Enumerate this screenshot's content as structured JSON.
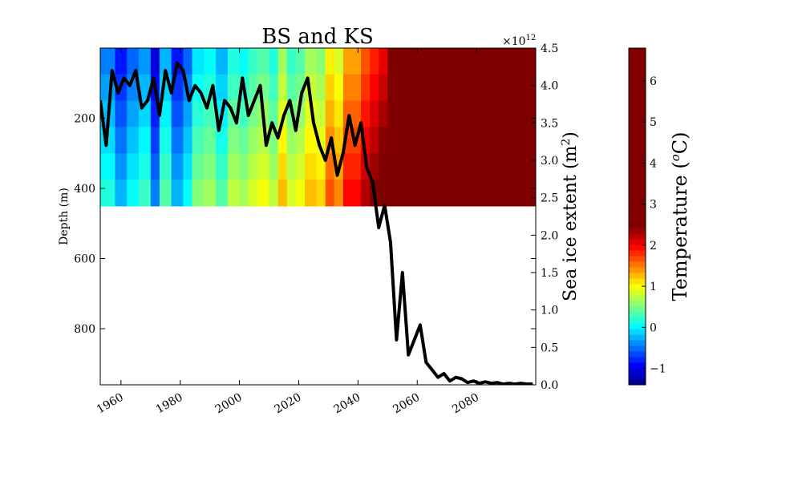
{
  "chart_data": {
    "type": "heatmap",
    "title": "BS and KS",
    "x_tick_labels": [
      "1960",
      "1980",
      "2000",
      "2020",
      "2040",
      "2060",
      "2080"
    ],
    "x_ticks": [
      1960,
      1980,
      2000,
      2020,
      2040,
      2060,
      2080
    ],
    "xlim": [
      1953,
      2100
    ],
    "left_axis": {
      "label": "Depth (m)",
      "ticks": [
        200,
        400,
        600,
        800
      ],
      "tick_labels": [
        "200",
        "400",
        "600",
        "800"
      ],
      "lim": [
        0,
        960
      ],
      "inverted": true
    },
    "right_axis": {
      "label": "Sea ice extent (m²)",
      "label_base": "Sea ice extent (m",
      "label_sup": "2",
      "label_tail": ")",
      "ticks": [
        0.0,
        0.5,
        1.0,
        1.5,
        2.0,
        2.5,
        3.0,
        3.5,
        4.0,
        4.5
      ],
      "tick_labels": [
        "0.0",
        "0.5",
        "1.0",
        "1.5",
        "2.0",
        "2.5",
        "3.0",
        "3.5",
        "4.0",
        "4.5"
      ],
      "lim": [
        0,
        4.5
      ],
      "multiplier_base": "×10",
      "multiplier_exp": "12"
    },
    "heatmap": {
      "depth_range": [
        0,
        450
      ],
      "temperature_by_year": [
        [
          1953,
          -0.2
        ],
        [
          1958,
          -0.6
        ],
        [
          1962,
          -0.3
        ],
        [
          1966,
          -0.1
        ],
        [
          1970,
          -0.8
        ],
        [
          1973,
          0.0
        ],
        [
          1977,
          -0.6
        ],
        [
          1981,
          -0.3
        ],
        [
          1984,
          0.2
        ],
        [
          1988,
          0.3
        ],
        [
          1992,
          0.0
        ],
        [
          1996,
          0.4
        ],
        [
          2000,
          0.3
        ],
        [
          2003,
          0.5
        ],
        [
          2006,
          0.6
        ],
        [
          2010,
          0.4
        ],
        [
          2013,
          0.9
        ],
        [
          2016,
          0.5
        ],
        [
          2019,
          0.6
        ],
        [
          2022,
          0.9
        ],
        [
          2026,
          0.8
        ],
        [
          2029,
          1.3
        ],
        [
          2032,
          1.1
        ],
        [
          2035,
          1.6
        ],
        [
          2038,
          1.6
        ],
        [
          2041,
          1.9
        ],
        [
          2044,
          2.1
        ],
        [
          2047,
          2.3
        ],
        [
          2050,
          2.5
        ],
        [
          2052,
          7.0
        ],
        [
          2100,
          7.0
        ]
      ]
    },
    "colorbar": {
      "label": "Temperature (°C)",
      "label_base": "Temperature (",
      "label_sup": "o",
      "label_tail": "C)",
      "range": [
        -1.4,
        6.8
      ],
      "ticks": [
        -1,
        0,
        1,
        2,
        3,
        4,
        5,
        6
      ],
      "tick_labels": [
        "−1",
        "0",
        "1",
        "2",
        "3",
        "4",
        "5",
        "6"
      ]
    },
    "sea_ice_series": {
      "name": "Sea ice extent",
      "color": "#000000",
      "x": [
        1953,
        1955,
        1957,
        1959,
        1961,
        1963,
        1965,
        1967,
        1969,
        1971,
        1973,
        1975,
        1977,
        1979,
        1981,
        1983,
        1985,
        1987,
        1989,
        1991,
        1993,
        1995,
        1997,
        1999,
        2001,
        2003,
        2005,
        2007,
        2009,
        2011,
        2013,
        2015,
        2017,
        2019,
        2021,
        2023,
        2025,
        2027,
        2029,
        2031,
        2033,
        2035,
        2037,
        2039,
        2041,
        2043,
        2045,
        2047,
        2049,
        2051,
        2053,
        2055,
        2057,
        2059,
        2061,
        2063,
        2065,
        2067,
        2069,
        2071,
        2073,
        2075,
        2077,
        2079,
        2081,
        2083,
        2085,
        2087,
        2089,
        2091,
        2093,
        2095,
        2097,
        2099
      ],
      "y": [
        3.8,
        3.2,
        4.2,
        3.9,
        4.1,
        4.0,
        4.2,
        3.7,
        3.8,
        4.1,
        3.6,
        4.2,
        3.9,
        4.3,
        4.2,
        3.8,
        4.0,
        3.9,
        3.7,
        4.0,
        3.4,
        3.8,
        3.7,
        3.5,
        4.1,
        3.6,
        3.8,
        4.0,
        3.2,
        3.5,
        3.3,
        3.6,
        3.8,
        3.4,
        3.9,
        4.1,
        3.5,
        3.2,
        3.0,
        3.3,
        2.8,
        3.1,
        3.6,
        3.2,
        3.5,
        2.9,
        2.7,
        2.1,
        2.4,
        1.9,
        0.6,
        1.5,
        0.4,
        0.6,
        0.8,
        0.3,
        0.2,
        0.1,
        0.15,
        0.05,
        0.1,
        0.08,
        0.03,
        0.05,
        0.02,
        0.04,
        0.02,
        0.03,
        0.01,
        0.02,
        0.01,
        0.02,
        0.01,
        0.01
      ]
    }
  }
}
